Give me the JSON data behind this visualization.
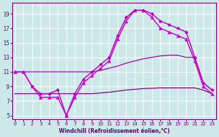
{
  "xlabel": "Windchill (Refroidissement éolien,°C)",
  "bg_color": "#cce8e8",
  "grid_color": "#ffffff",
  "x_ticks": [
    0,
    1,
    2,
    3,
    4,
    5,
    6,
    7,
    8,
    9,
    10,
    11,
    12,
    13,
    14,
    15,
    16,
    17,
    18,
    19,
    20,
    21,
    22,
    23
  ],
  "ylim": [
    4.5,
    20.5
  ],
  "xlim": [
    -0.3,
    23.5
  ],
  "yticks": [
    5,
    7,
    9,
    11,
    13,
    15,
    17,
    19
  ],
  "line_curve": {
    "x": [
      0,
      1,
      2,
      3,
      4,
      5,
      6,
      7,
      8,
      9,
      10,
      11,
      12,
      13,
      14,
      15,
      16,
      17,
      18,
      19,
      20,
      21,
      22,
      23
    ],
    "y": [
      11,
      11,
      9,
      8,
      8,
      8.5,
      5,
      8,
      10,
      11,
      12,
      13,
      16,
      18.5,
      19.5,
      19.5,
      19,
      18,
      17.5,
      17,
      16.5,
      13,
      9.5,
      8.5
    ],
    "color": "#bb00bb",
    "marker": "D",
    "markersize": 2.5,
    "linewidth": 1.1
  },
  "line_curve2": {
    "x": [
      0,
      1,
      2,
      3,
      4,
      5,
      6,
      7,
      8,
      9,
      10,
      11,
      12,
      13,
      14,
      15,
      16,
      17,
      18,
      19,
      20,
      21,
      22,
      23
    ],
    "y": [
      11,
      11,
      9,
      7.5,
      7.5,
      7.5,
      5,
      7.5,
      9.5,
      10.5,
      11.5,
      12.5,
      15.5,
      18,
      19.5,
      19.5,
      18.5,
      17,
      16.5,
      16,
      15.5,
      12.5,
      9,
      8
    ],
    "color": "#cc00cc",
    "marker": "^",
    "markersize": 3.5,
    "linewidth": 1.1
  },
  "line_flat1": {
    "x": [
      0,
      1,
      2,
      3,
      4,
      5,
      6,
      7,
      8,
      9,
      10,
      11,
      12,
      13,
      14,
      15,
      16,
      17,
      18,
      19,
      20,
      21,
      22,
      23
    ],
    "y": [
      11,
      11,
      11,
      11,
      11,
      11,
      11,
      11,
      11,
      11,
      11.2,
      11.5,
      11.8,
      12.2,
      12.5,
      12.8,
      13.0,
      13.2,
      13.3,
      13.3,
      13.0,
      13.0,
      9.5,
      8.5
    ],
    "color": "#990099",
    "linewidth": 0.9
  },
  "line_flat2": {
    "x": [
      0,
      1,
      2,
      3,
      4,
      5,
      6,
      7,
      8,
      9,
      10,
      11,
      12,
      13,
      14,
      15,
      16,
      17,
      18,
      19,
      20,
      21,
      22,
      23
    ],
    "y": [
      8,
      8,
      8,
      8,
      8,
      8,
      8,
      8,
      8,
      8,
      8.1,
      8.2,
      8.35,
      8.5,
      8.6,
      8.7,
      8.75,
      8.8,
      8.8,
      8.8,
      8.8,
      8.8,
      8.5,
      8.0
    ],
    "color": "#770077",
    "linewidth": 0.9
  }
}
